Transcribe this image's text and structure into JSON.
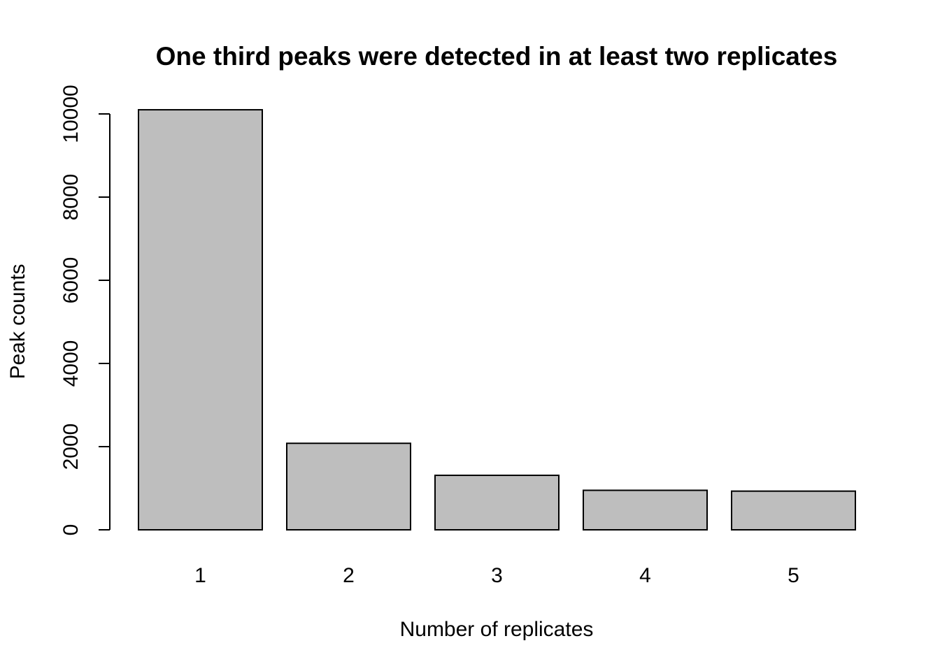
{
  "chart_data": {
    "type": "bar",
    "title": "One third peaks were detected in at least two replicates",
    "xlabel": "Number of replicates",
    "ylabel": "Peak counts",
    "categories": [
      "1",
      "2",
      "3",
      "4",
      "5"
    ],
    "values": [
      10100,
      2080,
      1310,
      950,
      930
    ],
    "ylim": [
      0,
      10000
    ],
    "yticks": [
      0,
      2000,
      4000,
      6000,
      8000,
      10000
    ],
    "ytick_labels": [
      "0",
      "2000",
      "4000",
      "6000",
      "8000",
      "10000"
    ],
    "bar_color": "#bebebe",
    "grid": false,
    "legend": "none"
  }
}
